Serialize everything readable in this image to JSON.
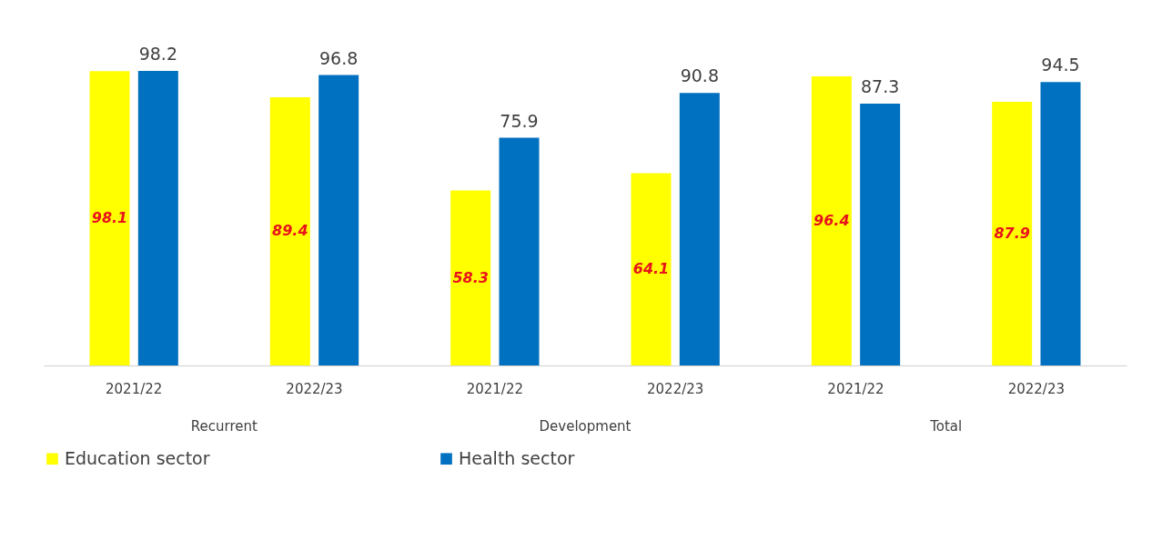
{
  "chart_data": {
    "type": "bar",
    "categories": [
      "2021/22",
      "2022/23",
      "2021/22",
      "2022/23",
      "2021/22",
      "2022/23"
    ],
    "series": [
      {
        "name": "Education sector",
        "color": "#ffff00",
        "values": [
          98.1,
          89.4,
          58.3,
          64.1,
          96.4,
          87.9
        ]
      },
      {
        "name": "Health sector",
        "color": "#0070c0",
        "values": [
          98.2,
          96.8,
          75.9,
          90.8,
          87.3,
          94.5
        ]
      }
    ],
    "annotations": [
      "Recurrent",
      "Development",
      "Total"
    ],
    "data_labels": true,
    "grid": false,
    "legend": "bottom"
  }
}
